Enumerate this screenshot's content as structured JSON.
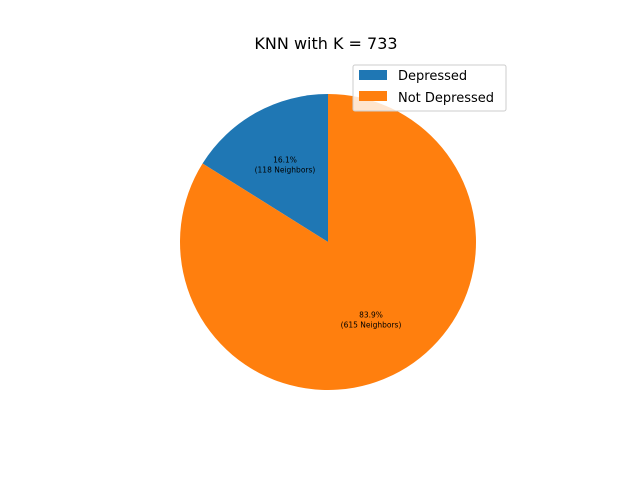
{
  "chart_data": {
    "type": "pie",
    "title": "KNN with K = 733",
    "start_angle_deg": 90,
    "direction": "counterclockwise",
    "slices": [
      {
        "label": "Depressed",
        "value": 118,
        "percent_text": "16.1%",
        "count_text": "(118 Neighbors)",
        "color": "#1f77b4"
      },
      {
        "label": "Not Depressed",
        "value": 615,
        "percent_text": "83.9%",
        "count_text": "(615 Neighbors)",
        "color": "#ff7f0e"
      }
    ],
    "legend": {
      "placement": "upper-right",
      "items": [
        "Depressed",
        "Not Depressed"
      ]
    }
  }
}
